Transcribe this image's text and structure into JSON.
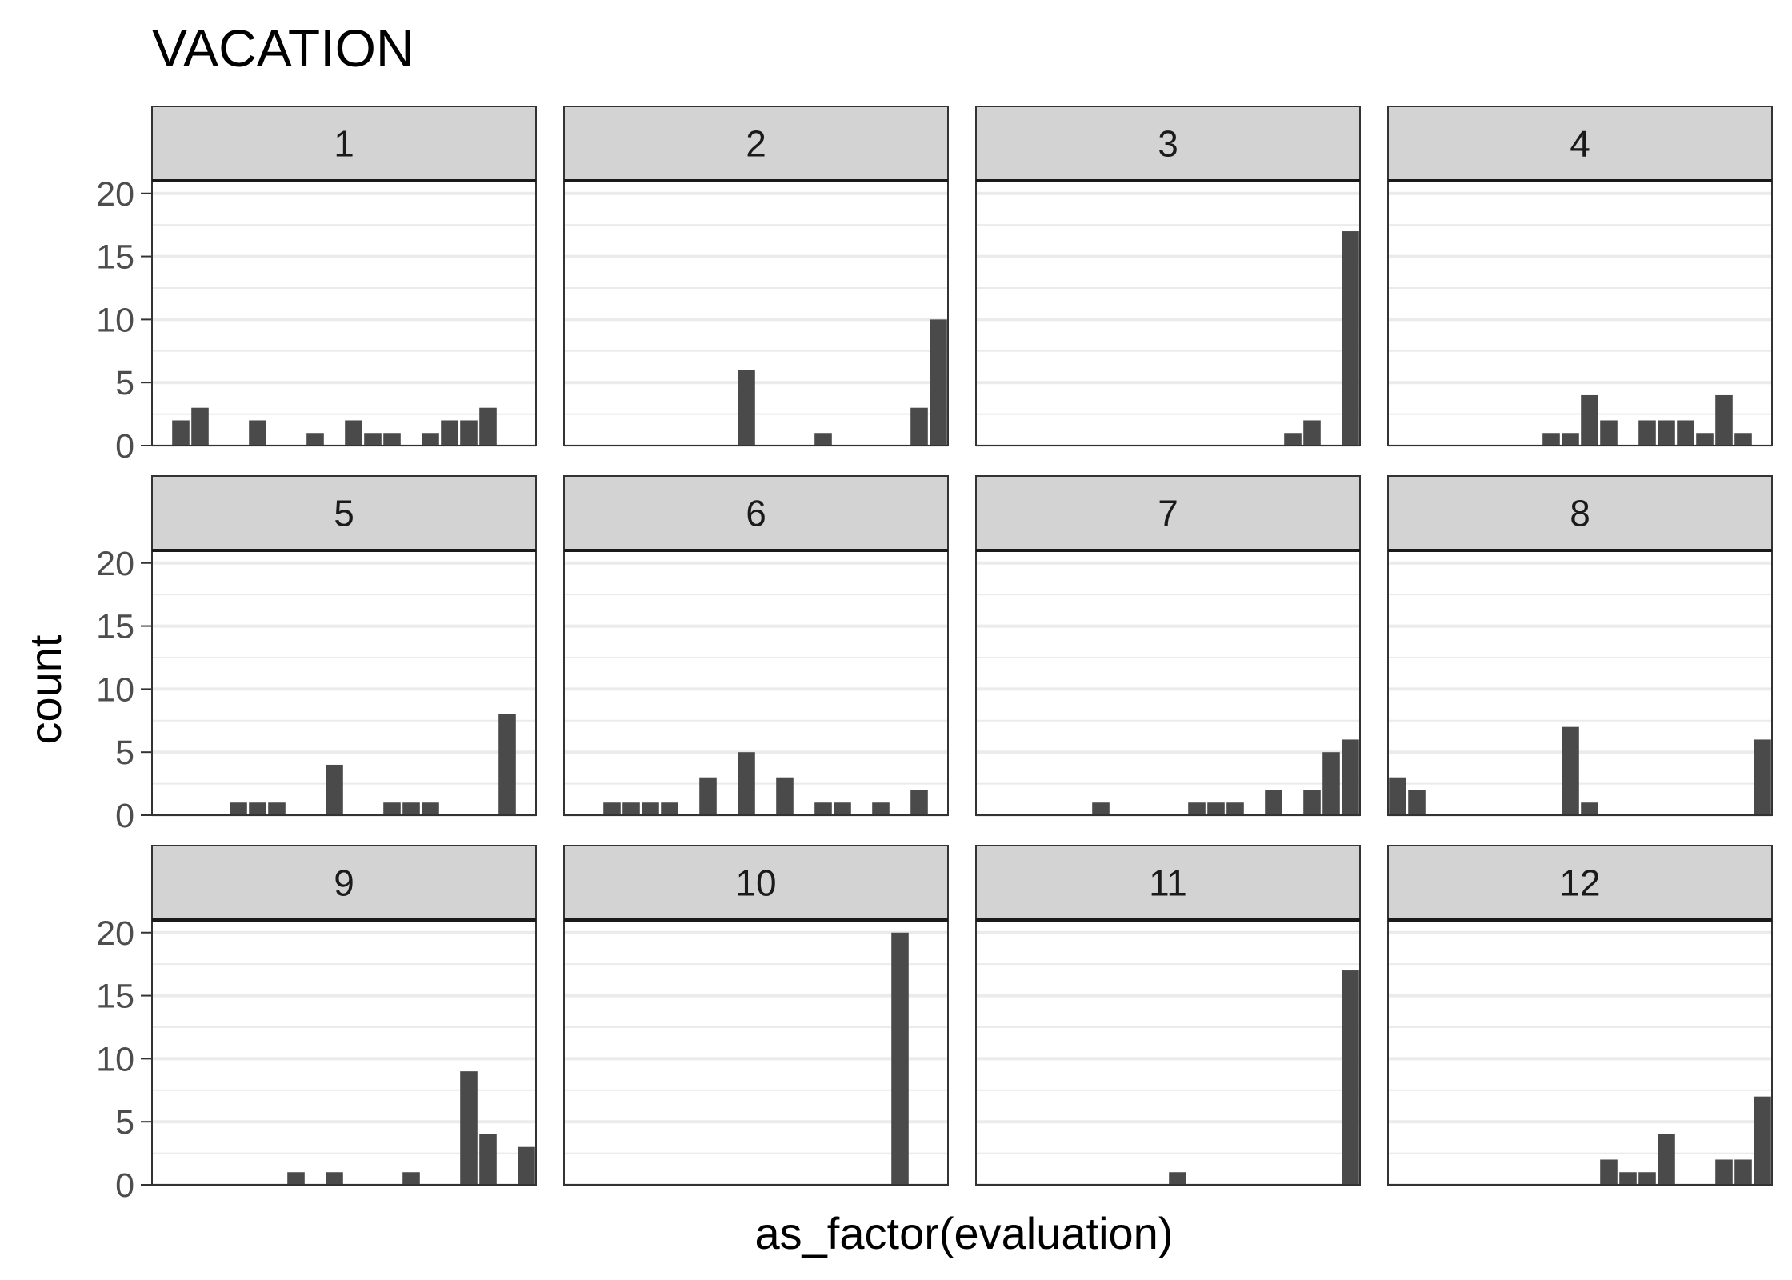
{
  "chart_data": {
    "type": "bar",
    "title": "VACATION",
    "xlabel": "as_factor(evaluation)",
    "ylabel": "count",
    "ylim": [
      0,
      21
    ],
    "y_ticks": [
      0,
      5,
      10,
      15,
      20
    ],
    "x_tick_labels_shown": false,
    "x_categories_count": 20,
    "grid": true,
    "facet_layout": "3 rows x 4 columns",
    "colors": {
      "bar": "#4a4a4a",
      "strip_background": "#d3d3d3",
      "grid": "#ebebeb",
      "panel_border": "#333333"
    },
    "facets": [
      {
        "label": "1",
        "values": [
          0,
          2,
          3,
          0,
          0,
          2,
          0,
          0,
          1,
          0,
          2,
          1,
          1,
          0,
          1,
          2,
          2,
          3,
          0,
          0
        ]
      },
      {
        "label": "2",
        "values": [
          0,
          0,
          0,
          0,
          0,
          0,
          0,
          0,
          0,
          6,
          0,
          0,
          0,
          1,
          0,
          0,
          0,
          0,
          3,
          10
        ]
      },
      {
        "label": "3",
        "values": [
          0,
          0,
          0,
          0,
          0,
          0,
          0,
          0,
          0,
          0,
          0,
          0,
          0,
          0,
          0,
          0,
          1,
          2,
          0,
          17
        ]
      },
      {
        "label": "4",
        "values": [
          0,
          0,
          0,
          0,
          0,
          0,
          0,
          0,
          1,
          1,
          4,
          2,
          0,
          2,
          2,
          2,
          1,
          4,
          1,
          0
        ]
      },
      {
        "label": "5",
        "values": [
          0,
          0,
          0,
          0,
          1,
          1,
          1,
          0,
          0,
          4,
          0,
          0,
          1,
          1,
          1,
          0,
          0,
          0,
          8,
          0
        ]
      },
      {
        "label": "6",
        "values": [
          0,
          0,
          1,
          1,
          1,
          1,
          0,
          3,
          0,
          5,
          0,
          3,
          0,
          1,
          1,
          0,
          1,
          0,
          2,
          0
        ]
      },
      {
        "label": "7",
        "values": [
          0,
          0,
          0,
          0,
          0,
          0,
          1,
          0,
          0,
          0,
          0,
          1,
          1,
          1,
          0,
          2,
          0,
          2,
          5,
          6
        ]
      },
      {
        "label": "8",
        "values": [
          3,
          2,
          0,
          0,
          0,
          0,
          0,
          0,
          0,
          7,
          1,
          0,
          0,
          0,
          0,
          0,
          0,
          0,
          0,
          6
        ]
      },
      {
        "label": "9",
        "values": [
          0,
          0,
          0,
          0,
          0,
          0,
          0,
          1,
          0,
          1,
          0,
          0,
          0,
          1,
          0,
          0,
          9,
          4,
          0,
          3
        ]
      },
      {
        "label": "10",
        "values": [
          0,
          0,
          0,
          0,
          0,
          0,
          0,
          0,
          0,
          0,
          0,
          0,
          0,
          0,
          0,
          0,
          0,
          20,
          0,
          0
        ]
      },
      {
        "label": "11",
        "values": [
          0,
          0,
          0,
          0,
          0,
          0,
          0,
          0,
          0,
          0,
          1,
          0,
          0,
          0,
          0,
          0,
          0,
          0,
          0,
          17
        ]
      },
      {
        "label": "12",
        "values": [
          0,
          0,
          0,
          0,
          0,
          0,
          0,
          0,
          0,
          0,
          0,
          2,
          1,
          1,
          4,
          0,
          0,
          2,
          2,
          7
        ]
      }
    ]
  }
}
